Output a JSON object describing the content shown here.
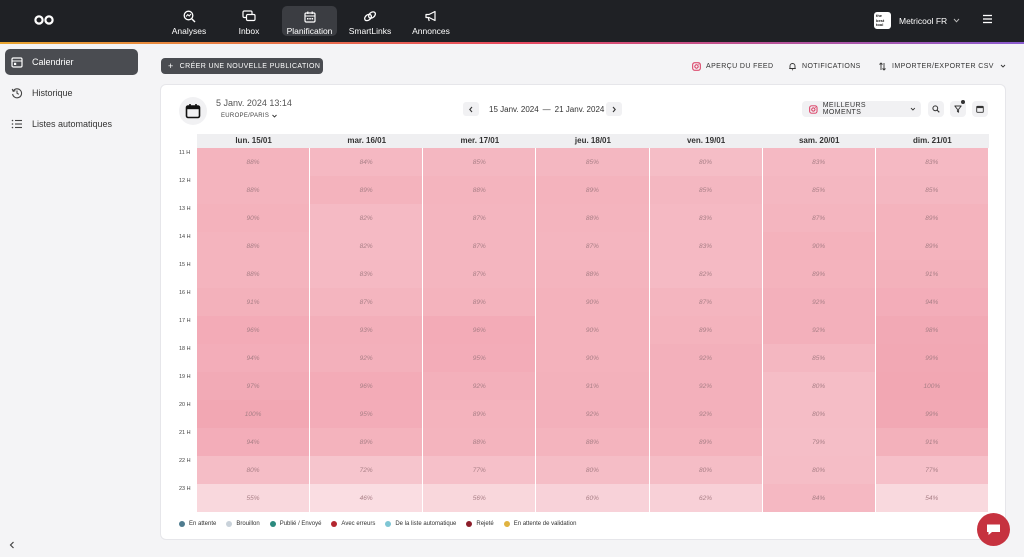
{
  "nav": {
    "items": [
      {
        "label": "Analyses",
        "icon": "analytics-icon"
      },
      {
        "label": "Inbox",
        "icon": "inbox-icon"
      },
      {
        "label": "Planification",
        "icon": "calendar-icon"
      },
      {
        "label": "SmartLinks",
        "icon": "link-icon"
      },
      {
        "label": "Annonces",
        "icon": "megaphone-icon"
      }
    ],
    "active": "Planification",
    "account": "Metricool FR",
    "account_avatar_text": "the best tool"
  },
  "sidebar": {
    "items": [
      {
        "label": "Calendrier",
        "icon": "calendar-icon"
      },
      {
        "label": "Historique",
        "icon": "history-icon"
      },
      {
        "label": "Listes automatiques",
        "icon": "list-icon"
      }
    ]
  },
  "toolbar": {
    "new_post": "CRÉER UNE NOUVELLE PUBLICATION",
    "feed_preview": "APERÇU DU FEED",
    "notifications": "NOTIFICATIONS",
    "import_export": "IMPORTER/EXPORTER CSV"
  },
  "calendar": {
    "current_date": "5 Janv. 2024 13:14",
    "timezone": "EUROPE/PARIS",
    "range_start": "15 Janv. 2024",
    "range_sep": "—",
    "range_end": "21 Janv. 2024",
    "best_moments": "MEILLEURS MOMENTS",
    "days": [
      "lun. 15/01",
      "mar. 16/01",
      "mer. 17/01",
      "jeu. 18/01",
      "ven. 19/01",
      "sam. 20/01",
      "dim. 21/01"
    ],
    "hours": [
      "11 H",
      "12 H",
      "13 H",
      "14 H",
      "15 H",
      "16 H",
      "17 H",
      "18 H",
      "19 H",
      "20 H",
      "21 H",
      "22 H",
      "23 H"
    ],
    "values": [
      [
        88,
        84,
        85,
        85,
        80,
        83,
        83
      ],
      [
        88,
        89,
        88,
        89,
        85,
        85,
        85
      ],
      [
        90,
        82,
        87,
        88,
        83,
        87,
        89
      ],
      [
        88,
        82,
        87,
        87,
        83,
        90,
        89
      ],
      [
        88,
        83,
        87,
        88,
        82,
        89,
        91
      ],
      [
        91,
        87,
        89,
        90,
        87,
        92,
        94
      ],
      [
        96,
        93,
        96,
        90,
        89,
        92,
        98
      ],
      [
        94,
        92,
        95,
        90,
        92,
        85,
        99
      ],
      [
        97,
        96,
        92,
        91,
        92,
        80,
        100
      ],
      [
        100,
        95,
        89,
        92,
        92,
        80,
        99
      ],
      [
        94,
        89,
        88,
        88,
        89,
        79,
        91
      ],
      [
        80,
        72,
        77,
        80,
        80,
        80,
        77
      ],
      [
        55,
        46,
        56,
        60,
        62,
        84,
        54
      ]
    ],
    "heat_colors": {
      "low": "#fadde2",
      "high": "#f2a7b3"
    }
  },
  "legend": [
    {
      "label": "En attente",
      "color": "#4f7c8f"
    },
    {
      "label": "Brouillon",
      "color": "#c9d2da"
    },
    {
      "label": "Publié / Envoyé",
      "color": "#2b8a7e"
    },
    {
      "label": "Avec erreurs",
      "color": "#b3262f"
    },
    {
      "label": "De la liste automatique",
      "color": "#7fc6d4"
    },
    {
      "label": "Rejeté",
      "color": "#8c1d2a"
    },
    {
      "label": "En attente de validation",
      "color": "#e0b341"
    }
  ]
}
